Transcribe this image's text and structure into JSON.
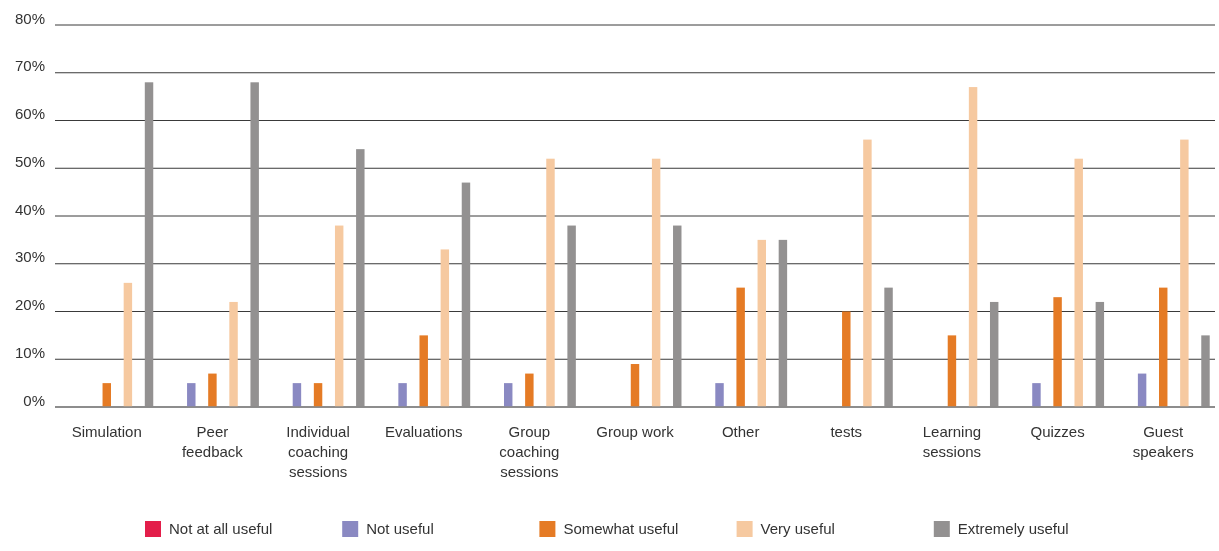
{
  "chart_data": {
    "type": "bar",
    "categories": [
      "Simulation",
      "Peer feedback",
      "Individual coaching sessions",
      "Evaluations",
      "Group coaching sessions",
      "Group work",
      "Other",
      "tests",
      "Learning sessions",
      "Quizzes",
      "Guest speakers"
    ],
    "series": [
      {
        "name": "Not at all useful",
        "color": "#e31e4a",
        "values": [
          null,
          null,
          null,
          null,
          null,
          null,
          null,
          null,
          null,
          null,
          null
        ]
      },
      {
        "name": "Not useful",
        "color": "#8a89c2",
        "values": [
          null,
          5,
          5,
          5,
          5,
          null,
          5,
          null,
          null,
          5,
          7
        ]
      },
      {
        "name": "Somewhat useful",
        "color": "#e57b25",
        "values": [
          5,
          7,
          5,
          15,
          7,
          9,
          25,
          20,
          15,
          23,
          25
        ]
      },
      {
        "name": "Very useful",
        "color": "#f6c9a0",
        "values": [
          26,
          22,
          38,
          33,
          52,
          52,
          35,
          56,
          67,
          52,
          56
        ]
      },
      {
        "name": "Extremely useful",
        "color": "#939191",
        "values": [
          68,
          68,
          54,
          47,
          38,
          38,
          35,
          25,
          22,
          22,
          15
        ]
      }
    ],
    "ylim": [
      0,
      80
    ],
    "yticks": [
      {
        "value": 0,
        "label": "0%"
      },
      {
        "value": 10,
        "label": "10%"
      },
      {
        "value": 20,
        "label": "20%"
      },
      {
        "value": 30,
        "label": "30%"
      },
      {
        "value": 40,
        "label": "40%"
      },
      {
        "value": 50,
        "label": "50%"
      },
      {
        "value": 60,
        "label": "60%"
      },
      {
        "value": 70,
        "label": "70%"
      },
      {
        "value": 80,
        "label": "80%"
      }
    ],
    "grid": "y",
    "legend": "bottom"
  }
}
